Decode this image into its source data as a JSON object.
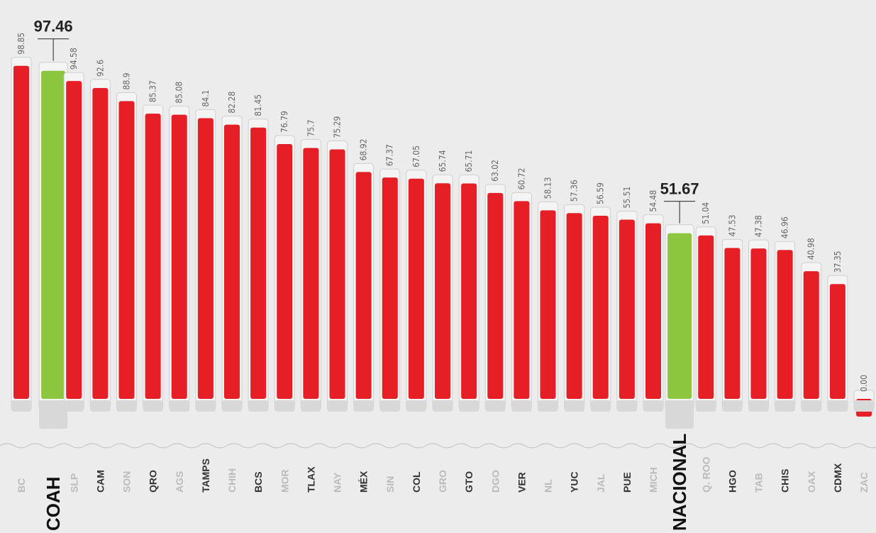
{
  "chart_data": {
    "type": "bar",
    "categories": [
      "BC",
      "COAH",
      "SLP",
      "CAM",
      "SON",
      "QRO",
      "AGS",
      "TAMPS",
      "CHIH",
      "BCS",
      "MOR",
      "TLAX",
      "NAY",
      "MÉX",
      "SIN",
      "COL",
      "GRO",
      "GTO",
      "DGO",
      "VER",
      "NL",
      "YUC",
      "JAL",
      "PUE",
      "MICH",
      "NACIONAL",
      "Q. ROO",
      "HGO",
      "TAB",
      "CHIS",
      "OAX",
      "CDMX",
      "ZAC"
    ],
    "values": [
      98.85,
      97.46,
      94.58,
      92.6,
      88.9,
      85.37,
      85.08,
      84.1,
      82.28,
      81.45,
      76.79,
      75.7,
      75.29,
      68.92,
      67.37,
      67.05,
      65.74,
      65.71,
      63.02,
      60.72,
      58.13,
      57.36,
      56.59,
      55.51,
      54.48,
      51.67,
      51.04,
      47.53,
      47.38,
      46.96,
      40.98,
      37.35,
      0
    ],
    "value_labels": [
      "98.85",
      "97.46",
      "94.58",
      "92.6",
      "88.9",
      "85.37",
      "85.08",
      "84.1",
      "82.28",
      "81.45",
      "76.79",
      "75.7",
      "75.29",
      "68.92",
      "67.37",
      "67.05",
      "65.74",
      "65.71",
      "63.02",
      "60.72",
      "58.13",
      "57.36",
      "56.59",
      "55.51",
      "54.48",
      "51.67",
      "51.04",
      "47.53",
      "47.38",
      "46.96",
      "40.98",
      "37.35",
      "0.00"
    ],
    "colors": [
      "#e61e25",
      "#8cc63f",
      "#e61e25",
      "#e61e25",
      "#e61e25",
      "#e61e25",
      "#e61e25",
      "#e61e25",
      "#e61e25",
      "#e61e25",
      "#e61e25",
      "#e61e25",
      "#e61e25",
      "#e61e25",
      "#e61e25",
      "#e61e25",
      "#e61e25",
      "#e61e25",
      "#e61e25",
      "#e61e25",
      "#e61e25",
      "#e61e25",
      "#e61e25",
      "#e61e25",
      "#e61e25",
      "#8cc63f",
      "#e61e25",
      "#e61e25",
      "#e61e25",
      "#e61e25",
      "#e61e25",
      "#e61e25",
      "#e61e25"
    ],
    "ylim": [
      0,
      100
    ]
  }
}
